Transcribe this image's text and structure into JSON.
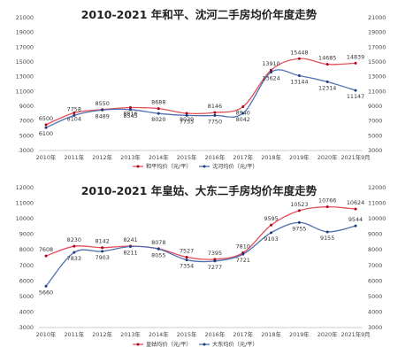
{
  "chart_data": [
    {
      "type": "line",
      "title": "2010-2021 年和平、沈河二手房均价年度走势",
      "categories": [
        "2010年",
        "2011年",
        "2012年",
        "2013年",
        "2014年",
        "2015年",
        "2016年",
        "2017年",
        "2018年",
        "2019年",
        "2020年",
        "2021年9月"
      ],
      "series": [
        {
          "name": "和平均价（元/平）",
          "color": "#e0505a",
          "marker": "#b00020",
          "values": [
            6500,
            8104,
            8550,
            8816,
            8688,
            8039,
            8146,
            8940,
            13910,
            15448,
            14685,
            14839
          ]
        },
        {
          "name": "沈河均价（元/平）",
          "color": "#4f6fb0",
          "marker": "#1f3a7a",
          "values": [
            6100,
            7758,
            8489,
            8545,
            8020,
            7755,
            7750,
            8042,
            13624,
            13144,
            12314,
            11147
          ]
        }
      ],
      "ylim": [
        3000,
        21000
      ],
      "yticks": [
        3000,
        5000,
        7000,
        9000,
        11000,
        13000,
        15000,
        17000,
        19000,
        21000
      ],
      "y2ticks": [
        3000,
        5000,
        7000,
        9000,
        11000,
        13000,
        15000,
        17000,
        19000,
        21000
      ],
      "grid": false,
      "legend": "bottom"
    },
    {
      "type": "line",
      "title": "2010-2021 年皇姑、大东二手房均价年度走势",
      "categories": [
        "2010年",
        "2011年",
        "2012年",
        "2013年",
        "2014年",
        "2015年",
        "2016年",
        "2017年",
        "2018年",
        "2019年",
        "2020年",
        "2021年9月"
      ],
      "series": [
        {
          "name": "皇姑均价（元/平）",
          "color": "#e0505a",
          "marker": "#b00020",
          "values": [
            7608,
            8230,
            8142,
            8241,
            8078,
            7527,
            7395,
            7810,
            9595,
            10523,
            10766,
            10624
          ]
        },
        {
          "name": "大东均价（元/平）",
          "color": "#4f6fb0",
          "marker": "#1f3a7a",
          "values": [
            5660,
            7833,
            7903,
            8211,
            8055,
            7354,
            7277,
            7721,
            9103,
            9755,
            9155,
            9544
          ]
        }
      ],
      "ylim": [
        3000,
        12000
      ],
      "yticks": [
        3000,
        4000,
        5000,
        6000,
        7000,
        8000,
        9000,
        10000,
        11000,
        12000
      ],
      "y2ticks": [
        3000,
        4000,
        5000,
        6000,
        7000,
        8000,
        9000,
        10000,
        11000,
        12000
      ],
      "grid": false,
      "legend": "bottom"
    }
  ]
}
